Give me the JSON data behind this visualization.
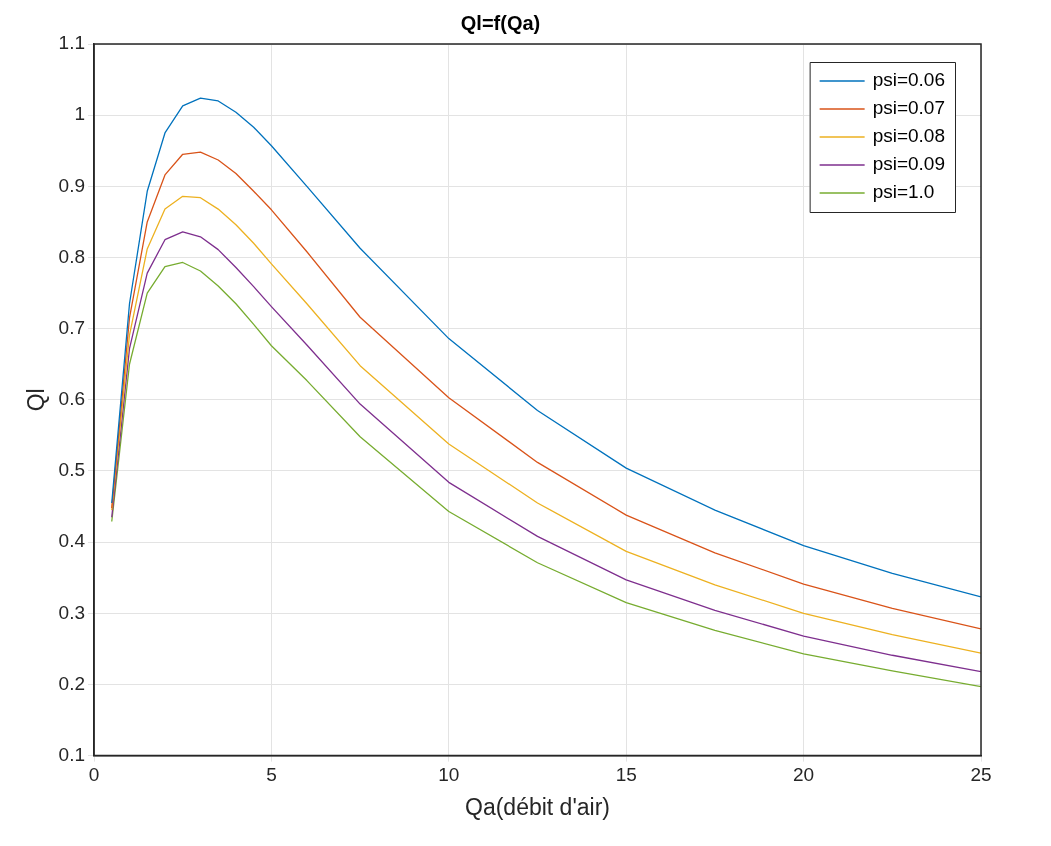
{
  "chart_data": {
    "type": "line",
    "title": "Ql=f(Qa)",
    "xlabel": "Qa(débit d'air)",
    "ylabel": "Ql",
    "x": [
      0.5,
      1,
      1.5,
      2,
      2.5,
      3,
      3.5,
      4,
      4.5,
      5,
      6,
      7.5,
      10,
      12.5,
      15,
      17.5,
      20,
      22.5,
      25
    ],
    "series": [
      {
        "name": "psi=0.06",
        "color": "#0072bd",
        "values": [
          0.455,
          0.735,
          0.893,
          0.975,
          1.013,
          1.024,
          1.02,
          1.004,
          0.983,
          0.957,
          0.9,
          0.813,
          0.686,
          0.585,
          0.504,
          0.445,
          0.395,
          0.356,
          0.323
        ]
      },
      {
        "name": "psi=0.07",
        "color": "#d95319",
        "values": [
          0.448,
          0.715,
          0.85,
          0.916,
          0.945,
          0.948,
          0.937,
          0.918,
          0.893,
          0.867,
          0.808,
          0.716,
          0.603,
          0.512,
          0.438,
          0.385,
          0.341,
          0.307,
          0.278
        ]
      },
      {
        "name": "psi=0.08",
        "color": "#edb120",
        "values": [
          0.445,
          0.691,
          0.812,
          0.868,
          0.886,
          0.884,
          0.868,
          0.846,
          0.82,
          0.791,
          0.735,
          0.648,
          0.538,
          0.455,
          0.387,
          0.34,
          0.3,
          0.27,
          0.244
        ]
      },
      {
        "name": "psi=0.09",
        "color": "#7e2f8e",
        "values": [
          0.435,
          0.672,
          0.778,
          0.825,
          0.836,
          0.829,
          0.811,
          0.786,
          0.759,
          0.731,
          0.677,
          0.594,
          0.484,
          0.408,
          0.347,
          0.304,
          0.268,
          0.241,
          0.218
        ]
      },
      {
        "name": "psi=1.0",
        "color": "#77ac30",
        "values": [
          0.429,
          0.65,
          0.75,
          0.787,
          0.793,
          0.781,
          0.76,
          0.735,
          0.706,
          0.676,
          0.627,
          0.548,
          0.443,
          0.371,
          0.315,
          0.276,
          0.243,
          0.219,
          0.197
        ]
      }
    ],
    "xlim": [
      0,
      25
    ],
    "xticks": [
      0,
      5,
      10,
      15,
      20,
      25
    ],
    "ylim": [
      0.1,
      1.1
    ],
    "yticks": [
      0.1,
      0.2,
      0.3,
      0.4,
      0.5,
      0.6,
      0.7,
      0.8,
      0.9,
      1,
      1.1
    ],
    "grid": true,
    "legend": "top right",
    "marker": "none",
    "line_style": "solid"
  }
}
